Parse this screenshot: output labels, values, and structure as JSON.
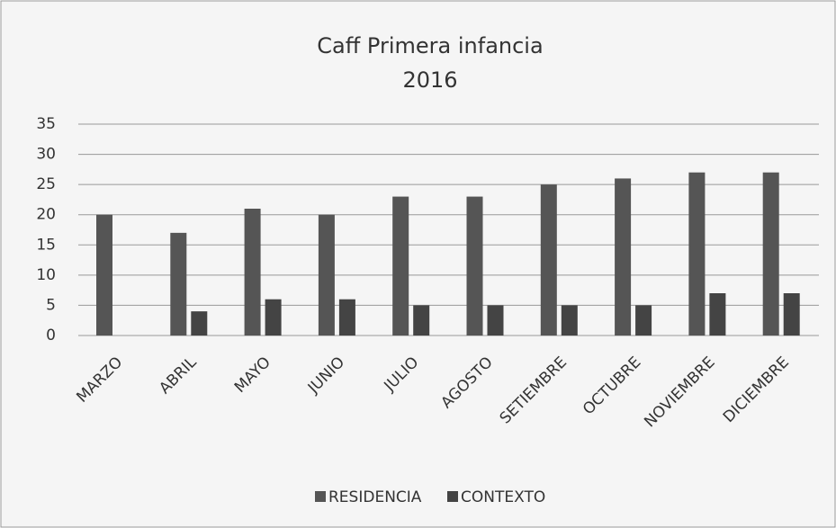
{
  "chart_data": {
    "type": "bar",
    "title": "Caff Primera infancia",
    "subtitle": "2016",
    "categories": [
      "MARZO",
      "ABRIL",
      "MAYO",
      "JUNIO",
      "JULIO",
      "AGOSTO",
      "SETIEMBRE",
      "OCTUBRE",
      "NOVIEMBRE",
      "DICIEMBRE"
    ],
    "series": [
      {
        "name": "RESIDENCIA",
        "color": "#555555",
        "values": [
          20,
          17,
          21,
          20,
          23,
          23,
          25,
          26,
          27,
          27
        ]
      },
      {
        "name": "CONTEXTO",
        "color": "#444444",
        "values": [
          null,
          4,
          6,
          6,
          5,
          5,
          5,
          5,
          7,
          7
        ]
      }
    ],
    "ylim": [
      0,
      35
    ],
    "yticks": [
      0,
      5,
      10,
      15,
      20,
      25,
      30,
      35
    ],
    "grid": true,
    "legend": "bottom"
  }
}
